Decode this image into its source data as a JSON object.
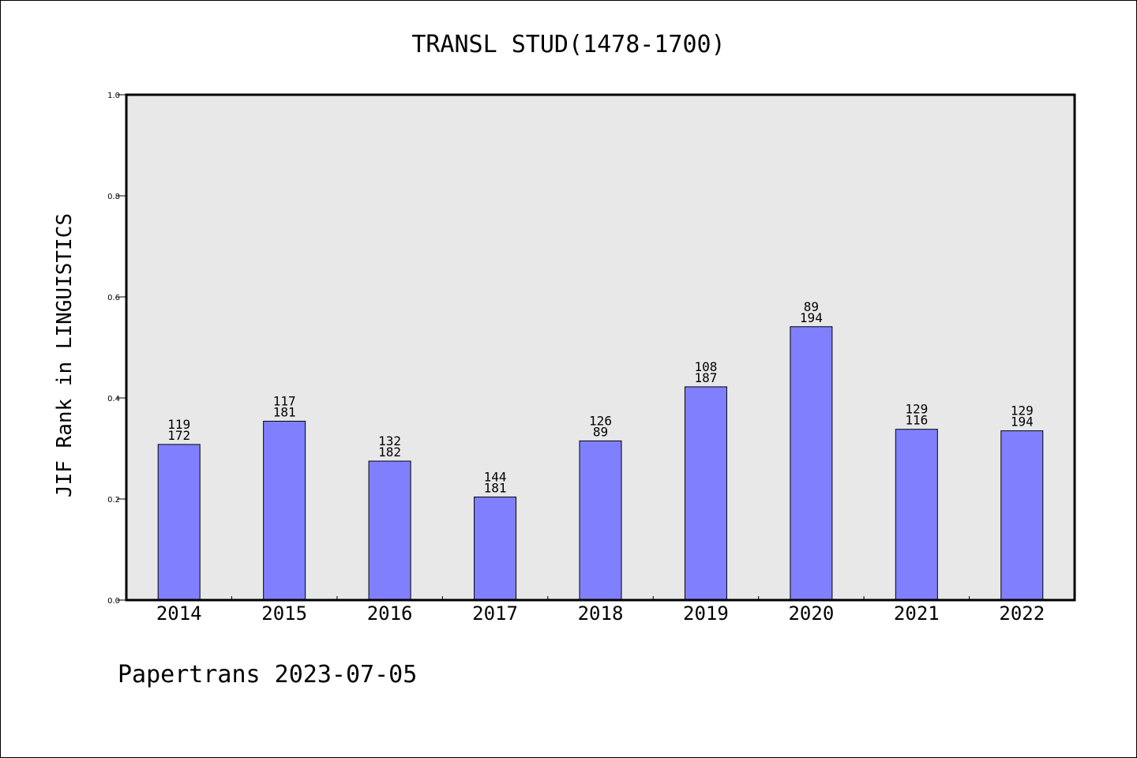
{
  "chart_data": {
    "type": "bar",
    "title": "TRANSL STUD(1478-1700)",
    "xlabel": "",
    "ylabel": "JIF Rank in LINGUISTICS",
    "categories": [
      "2014",
      "2015",
      "2016",
      "2017",
      "2018",
      "2019",
      "2020",
      "2021",
      "2022"
    ],
    "values": [
      0.308,
      0.354,
      0.275,
      0.204,
      0.315,
      0.422,
      0.541,
      0.338,
      0.335
    ],
    "data_labels": [
      [
        "119",
        "172"
      ],
      [
        "117",
        "181"
      ],
      [
        "132",
        "182"
      ],
      [
        "144",
        "181"
      ],
      [
        "126",
        "89"
      ],
      [
        "108",
        "187"
      ],
      [
        "89",
        "194"
      ],
      [
        "129",
        "116"
      ],
      [
        "129",
        "194"
      ]
    ],
    "ylim": [
      0,
      1.0
    ],
    "yticks": [
      "0.0",
      "0.2",
      "0.4",
      "0.6",
      "0.8",
      "1.0"
    ],
    "grid": false,
    "colors": {
      "bar_fill": "#8080ff",
      "bar_edge": "#000000",
      "plot_background": "#e8e8e8"
    }
  },
  "footer": "Papertrans 2023-07-05"
}
